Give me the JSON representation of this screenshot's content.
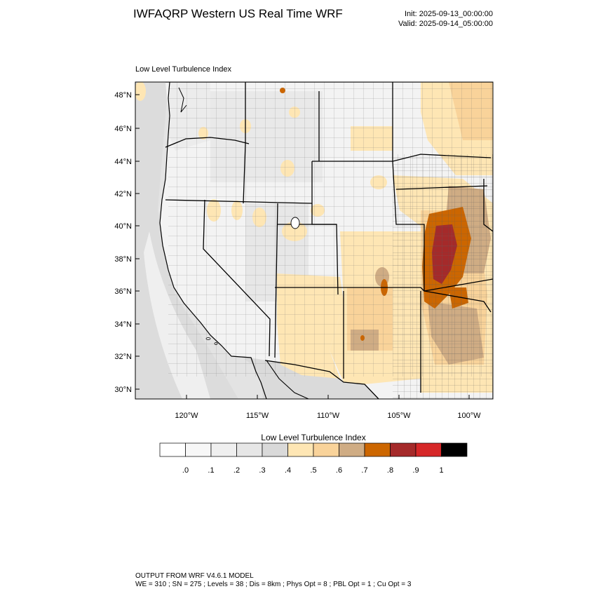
{
  "header": {
    "title": "IWFAQRP Western US Real Time WRF",
    "init": "Init: 2025-09-13_00:00:00",
    "valid": "Valid: 2025-09-14_05:00:00"
  },
  "map": {
    "subtitle": "Low Level Turbulence Index",
    "lat_labels": [
      "48°N",
      "46°N",
      "44°N",
      "42°N",
      "40°N",
      "38°N",
      "36°N",
      "34°N",
      "32°N",
      "30°N"
    ],
    "lon_labels": [
      "120°W",
      "115°W",
      "110°W",
      "105°W",
      "100°W"
    ],
    "colors": {
      "ocean": "#e6e6e6",
      "land_light": "#f2f2f2",
      "state_line": "#000000",
      "county_line": "#555555"
    }
  },
  "colorbar": {
    "title": "Low Level Turbulence Index",
    "colors": [
      "#ffffff",
      "#f7f7f7",
      "#efefef",
      "#e6e6e6",
      "#d9d9d9",
      "#fee6b4",
      "#f9d39a",
      "#cfac84",
      "#cc6600",
      "#a52a2a",
      "#d62728",
      "#000000"
    ],
    "labels": [
      ".0",
      ".1",
      ".2",
      ".3",
      ".4",
      ".5",
      ".6",
      ".7",
      ".8",
      ".9",
      "1"
    ]
  },
  "footer": {
    "line1": "OUTPUT FROM WRF V4.6.1 MODEL",
    "line2": "WE = 310 ; SN = 275 ; Levels = 38 ; Dis = 8km ; Phys Opt = 8 ; PBL Opt = 1 ; Cu Opt = 3"
  }
}
